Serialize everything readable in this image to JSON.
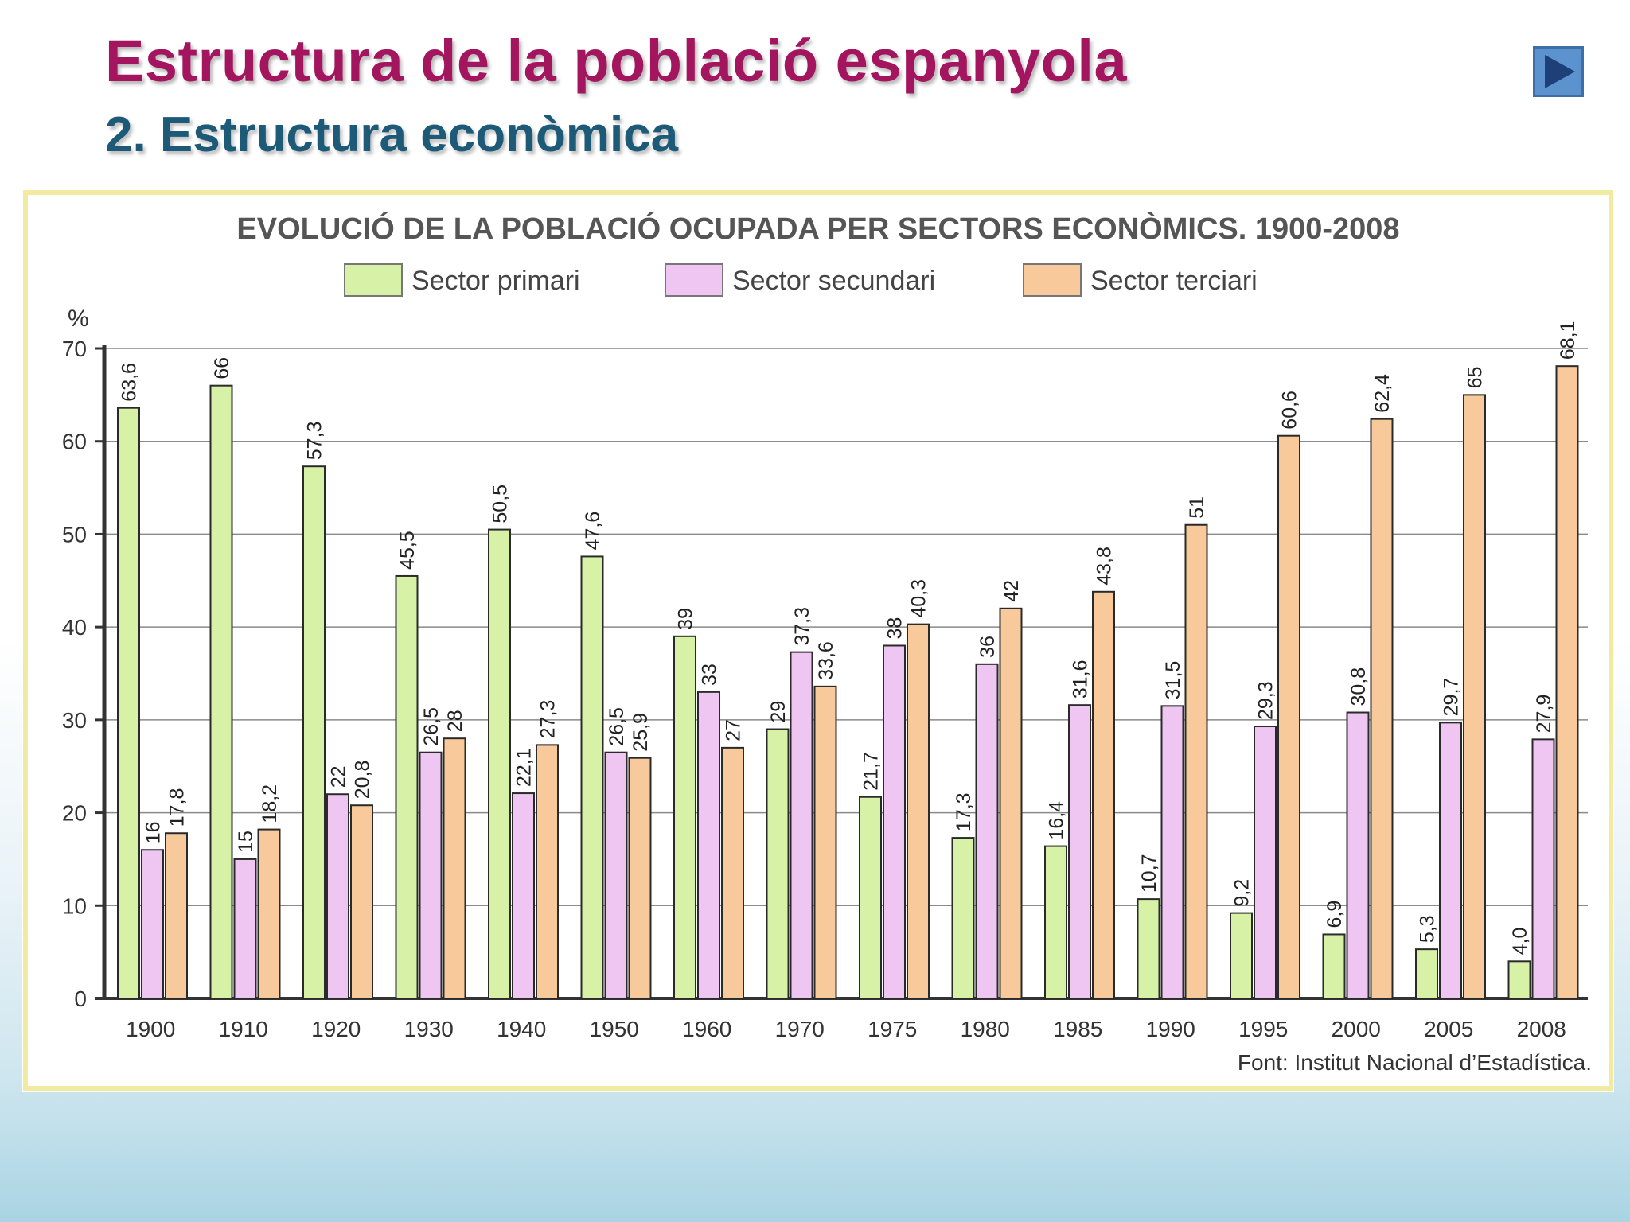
{
  "slide": {
    "title": "Estructura de la població espanyola",
    "subtitle": "2. Estructura econòmica",
    "next_icon": "play-next-icon"
  },
  "colors": {
    "primari": "#d7f1a6",
    "secundari": "#efc6f2",
    "terciari": "#f8c99a",
    "title": "#a3155e",
    "subtitle": "#1d5a78",
    "frame_border": "#f0eba0"
  },
  "chart_data": {
    "type": "bar",
    "title": "EVOLUCIÓ DE LA POBLACIÓ OCUPADA PER SECTORS ECONÒMICS. 1900-2008",
    "ylabel": "%",
    "xlabel": "",
    "ylim": [
      0,
      70
    ],
    "yticks": [
      0,
      10,
      20,
      30,
      40,
      50,
      60,
      70
    ],
    "grid": true,
    "legend_position": "top",
    "categories": [
      "1900",
      "1910",
      "1920",
      "1930",
      "1940",
      "1950",
      "1960",
      "1970",
      "1975",
      "1980",
      "1985",
      "1990",
      "1995",
      "2000",
      "2005",
      "2008"
    ],
    "series": [
      {
        "name": "Sector primari",
        "values": [
          63.6,
          66,
          57.3,
          45.5,
          50.5,
          47.6,
          39,
          29,
          21.7,
          17.3,
          16.4,
          10.7,
          9.2,
          6.9,
          5.3,
          4.0
        ],
        "labels": [
          "63,6",
          "66",
          "57,3",
          "45,5",
          "50,5",
          "47,6",
          "39",
          "29",
          "21,7",
          "17,3",
          "16,4",
          "10,7",
          "9,2",
          "6,9",
          "5,3",
          "4,0"
        ]
      },
      {
        "name": "Sector secundari",
        "values": [
          16,
          15,
          22,
          26.5,
          22.1,
          26.5,
          33,
          37.3,
          38,
          36,
          31.6,
          31.5,
          29.3,
          30.8,
          29.7,
          27.9
        ],
        "labels": [
          "16",
          "15",
          "22",
          "26,5",
          "22,1",
          "26,5",
          "33",
          "37,3",
          "38",
          "36",
          "31,6",
          "31,5",
          "29,3",
          "30,8",
          "29,7",
          "27,9"
        ]
      },
      {
        "name": "Sector terciari",
        "values": [
          17.8,
          18.2,
          20.8,
          28,
          27.3,
          25.9,
          27,
          33.6,
          40.3,
          42,
          43.8,
          51,
          60.6,
          62.4,
          65,
          68.1
        ],
        "labels": [
          "17,8",
          "18,2",
          "20,8",
          "28",
          "27,3",
          "25,9",
          "27",
          "33,6",
          "40,3",
          "42",
          "43,8",
          "51",
          "60,6",
          "62,4",
          "65",
          "68,1"
        ]
      }
    ],
    "source": "Font: Institut Nacional d’Estadística."
  }
}
